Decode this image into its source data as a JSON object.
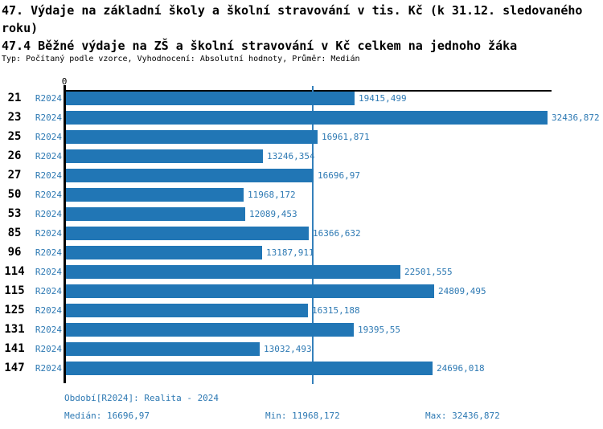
{
  "colors": {
    "bar": "#2176b5",
    "blue_text": "#2d79b3",
    "median_line": "#3580bb",
    "axis": "#000000"
  },
  "chart_data": {
    "type": "bar",
    "orientation": "horizontal",
    "title": "47. Výdaje na základní školy a školní stravování v tis. Kč (k 31.12. sledovaného roku)",
    "subtitle": "47.4 Běžné výdaje na ZŠ a školní stravování v Kč celkem na jednoho žáka",
    "meta": "Typ: Počítaný podle vzorce, Vyhodnocení: Absolutní hodnoty, Průměr: Medián",
    "series_label": "R2024",
    "axis_zero_label": "0",
    "xlim": [
      0,
      32765
    ],
    "grid": false,
    "legend": "none",
    "median_value": 16696.97,
    "categories": [
      "21",
      "23",
      "25",
      "26",
      "27",
      "50",
      "53",
      "85",
      "96",
      "114",
      "115",
      "125",
      "131",
      "141",
      "147"
    ],
    "values": [
      19415.499,
      32436.872,
      16961.871,
      13246.354,
      16696.97,
      11968.172,
      12089.453,
      16366.632,
      13187.911,
      22501.555,
      24809.495,
      16315.188,
      19395.55,
      13032.493,
      24696.018
    ],
    "value_labels": [
      "19415,499",
      "32436,872",
      "16961,871",
      "13246,354",
      "16696,97",
      "11968,172",
      "12089,453",
      "16366,632",
      "13187,911",
      "22501,555",
      "24809,495",
      "16315,188",
      "19395,55",
      "13032,493",
      "24696,018"
    ]
  },
  "footer": {
    "period": "Období[R2024]: Realita - 2024",
    "median": "Medián: 16696,97",
    "min": "Min: 11968,172",
    "max": "Max: 32436,872"
  }
}
